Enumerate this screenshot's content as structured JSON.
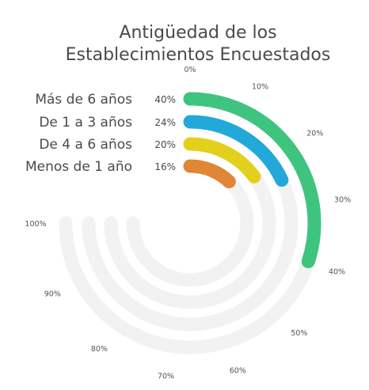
{
  "chart_data": {
    "type": "radial-bar",
    "title_lines": [
      "Antigüedad de los",
      "Establecimientos Encuestados"
    ],
    "categories": [
      "Más de 6 años",
      "De 1 a 3 años",
      "De 4 a 6 años",
      "Menos de 1 año"
    ],
    "values": [
      40,
      24,
      20,
      16
    ],
    "value_labels": [
      "40%",
      "24%",
      "20%",
      "16%"
    ],
    "colors": [
      "#3fc47f",
      "#22a9da",
      "#e3d01c",
      "#e08635"
    ],
    "track_color": "#f2f2f2",
    "axis_max": 100,
    "ticks": [
      "0%",
      "10%",
      "20%",
      "30%",
      "40%",
      "50%",
      "60%",
      "70%",
      "80%",
      "90%",
      "100%"
    ]
  }
}
